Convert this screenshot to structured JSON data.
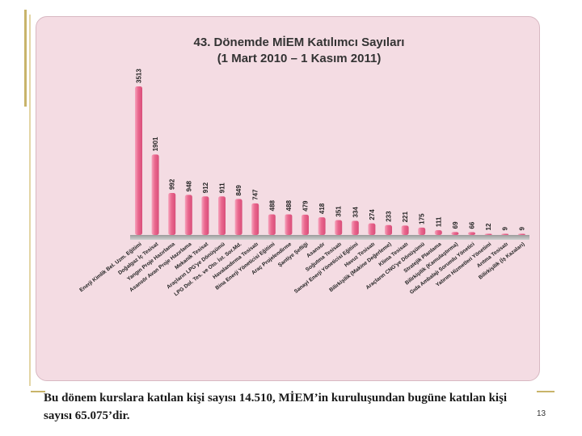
{
  "slide": {
    "caption": "Bu dönem kurslara katılan kişi sayısı 14.510, MİEM’in kuruluşundan bugüne katılan kişi sayısı 65.075’dir.",
    "page_number": "13"
  },
  "colors": {
    "bar": "#e9668d",
    "bar_highlight": "#f6a3bc",
    "panel": "#f4dce3",
    "frame": "#c8b46a"
  },
  "chart_data": {
    "type": "bar",
    "title_lines": [
      "43. Dönemde MİEM Katılımcı Sayıları",
      "(1 Mart 2010 – 1 Kasım 2011)"
    ],
    "categories": [
      "Enerji Kimlik Bel. Uzm. Eğitimi",
      "Doğalgaz İç Tesisat",
      "Yangın Proje Hazırlama",
      "Asansör Avan Proje Hazırlama",
      "Mekanik Tesisat",
      "Araçların LPG'ye Dönüşümü",
      "LPG Dol. Tes. ve Oto. İst. Sor.Md.",
      "Havalandırma Tesisatı",
      "Bina Enerji Yöneticisi Eğitimi",
      "Araç Projelendirme",
      "Şantiye Şefliği",
      "Asansör",
      "Soğutma Tesisatı",
      "Sanayi Enerji Yöneticisi Eğitimi",
      "Havuz Tesisatı",
      "Bilirkişilik (Makine Değerleme)",
      "Klima Tesisatı",
      "Araçların CNG'ye Dönüşümü",
      "Stratejik Planlama",
      "Bilirkişilik (Kamulaştırma)",
      "Gıda Ambalajı Sorumlu Yönetici",
      "Yatırım Hizmetleri Yönetimi",
      "Arıtma Tesisatı",
      "Bilirkişilik (İş Kazaları)"
    ],
    "values": [
      3513,
      1901,
      992,
      948,
      912,
      911,
      849,
      747,
      488,
      488,
      479,
      418,
      351,
      334,
      274,
      233,
      221,
      175,
      111,
      69,
      66,
      12,
      9,
      9
    ],
    "ylim": [
      0,
      3513
    ],
    "grid": false,
    "legend": "none"
  }
}
